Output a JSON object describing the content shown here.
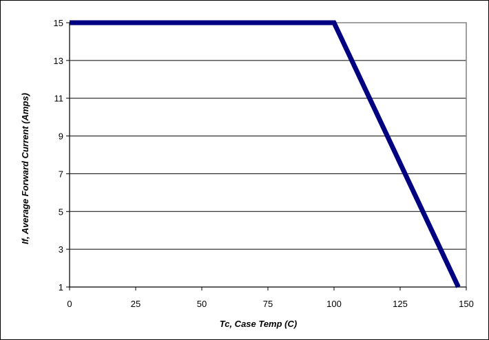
{
  "chart_data": {
    "type": "line",
    "title": "",
    "xlabel": "Tc, Case Temp (C)",
    "ylabel": "If, Average Forward Current (Amps)",
    "xlim": [
      0,
      150
    ],
    "ylim": [
      1,
      15
    ],
    "xticks": [
      0,
      25,
      50,
      75,
      100,
      125,
      150
    ],
    "yticks": [
      1,
      3,
      5,
      7,
      9,
      11,
      13,
      15
    ],
    "grid": "horizontal",
    "legend": "none",
    "series": [
      {
        "color": "#000080",
        "points": [
          {
            "x": 0,
            "y": 15
          },
          {
            "x": 100,
            "y": 15
          },
          {
            "x": 147,
            "y": 1
          }
        ]
      }
    ]
  }
}
